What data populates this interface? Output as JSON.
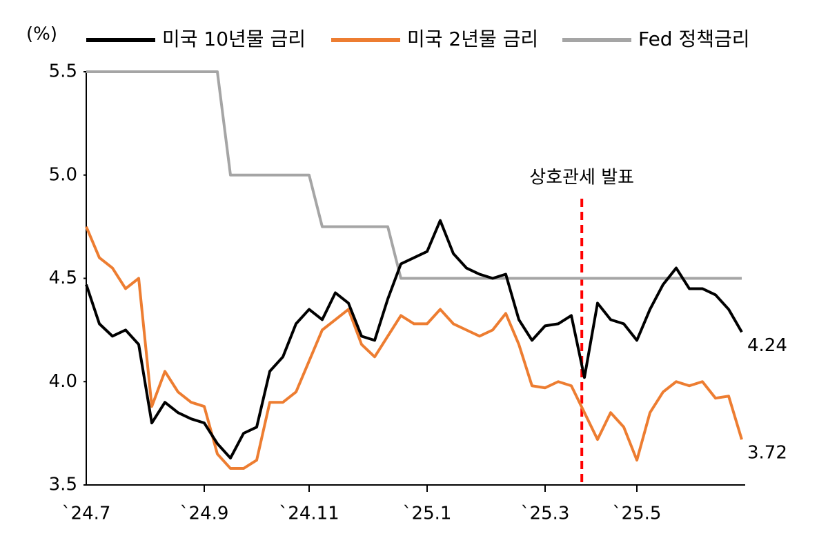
{
  "chart_data": {
    "type": "line",
    "y_label": "(%)",
    "annotation": "상호관세 발표",
    "categories": [
      "`24.7",
      null,
      null,
      null,
      null,
      null,
      null,
      null,
      null,
      "`24.9",
      null,
      null,
      null,
      null,
      null,
      null,
      null,
      "`24.11",
      null,
      null,
      null,
      null,
      null,
      null,
      null,
      null,
      "`25.1",
      null,
      null,
      null,
      null,
      null,
      null,
      null,
      null,
      "`25.3",
      null,
      null,
      null,
      null,
      null,
      null,
      "`25.5",
      null,
      null,
      null,
      null,
      null,
      null,
      null,
      null
    ],
    "series": [
      {
        "name": "미국 10년물 금리",
        "color": "#000000",
        "values": [
          4.47,
          4.28,
          4.22,
          4.25,
          4.18,
          3.8,
          3.9,
          3.85,
          3.82,
          3.8,
          3.7,
          3.63,
          3.75,
          3.78,
          4.05,
          4.12,
          4.28,
          4.35,
          4.3,
          4.43,
          4.38,
          4.22,
          4.2,
          4.4,
          4.57,
          4.6,
          4.63,
          4.78,
          4.62,
          4.55,
          4.52,
          4.5,
          4.52,
          4.3,
          4.2,
          4.27,
          4.28,
          4.32,
          4.02,
          4.38,
          4.3,
          4.28,
          4.2,
          4.35,
          4.47,
          4.55,
          4.45,
          4.45,
          4.42,
          4.35,
          4.24
        ]
      },
      {
        "name": "미국 2년물 금리",
        "color": "#ED7D31",
        "values": [
          4.75,
          4.6,
          4.55,
          4.45,
          4.5,
          3.88,
          4.05,
          3.95,
          3.9,
          3.88,
          3.65,
          3.58,
          3.58,
          3.62,
          3.9,
          3.9,
          3.95,
          4.1,
          4.25,
          4.3,
          4.35,
          4.18,
          4.12,
          4.22,
          4.32,
          4.28,
          4.28,
          4.35,
          4.28,
          4.25,
          4.22,
          4.25,
          4.33,
          4.18,
          3.98,
          3.97,
          4.0,
          3.98,
          3.85,
          3.72,
          3.85,
          3.78,
          3.62,
          3.85,
          3.95,
          4.0,
          3.98,
          4.0,
          3.92,
          3.93,
          3.72
        ]
      },
      {
        "name": "Fed 정책금리",
        "color": "#A5A5A5",
        "values": [
          5.5,
          5.5,
          5.5,
          5.5,
          5.5,
          5.5,
          5.5,
          5.5,
          5.5,
          5.5,
          5.5,
          5.0,
          5.0,
          5.0,
          5.0,
          5.0,
          5.0,
          5.0,
          4.75,
          4.75,
          4.75,
          4.75,
          4.75,
          4.75,
          4.5,
          4.5,
          4.5,
          4.5,
          4.5,
          4.5,
          4.5,
          4.5,
          4.5,
          4.5,
          4.5,
          4.5,
          4.5,
          4.5,
          4.5,
          4.5,
          4.5,
          4.5,
          4.5,
          4.5,
          4.5,
          4.5,
          4.5,
          4.5,
          4.5,
          4.5,
          4.5
        ]
      }
    ],
    "end_labels": [
      true,
      true,
      false
    ],
    "ylim": [
      3.5,
      5.5
    ],
    "yticks": [
      3.5,
      {
        "value": 4,
        "label": "4.0"
      },
      4.5,
      {
        "value": 5,
        "label": "5.0"
      },
      5.5
    ],
    "grid": false
  }
}
